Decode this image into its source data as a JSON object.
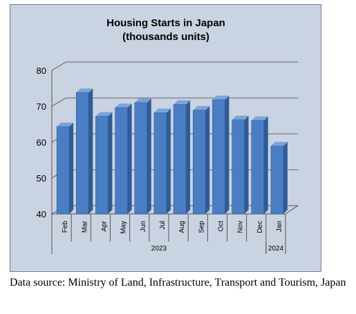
{
  "chart_data": {
    "type": "bar",
    "title": "Housing Starts in Japan",
    "subtitle": "(thousands units)",
    "categories": [
      "Feb",
      "Mar",
      "Apr",
      "May",
      "Jun",
      "Jul",
      "Aug",
      "Sep",
      "Oct",
      "Nov",
      "Dec",
      "Jan"
    ],
    "values": [
      64.3,
      73.8,
      67.2,
      69.6,
      71.0,
      68.2,
      70.5,
      68.9,
      71.8,
      66.2,
      66.0,
      58.9
    ],
    "year_groups": [
      {
        "label": "2023",
        "count": 11
      },
      {
        "label": "2024",
        "count": 1
      }
    ],
    "yticks": [
      40,
      50,
      60,
      70,
      80
    ],
    "ylim": [
      40,
      80
    ],
    "xlabel": "",
    "ylabel": "",
    "grid": true,
    "bar_color": "#4a7ec4"
  },
  "footer": {
    "source": "Data source: Ministry of Land, Infrastructure, Transport and Tourism, Japan"
  }
}
